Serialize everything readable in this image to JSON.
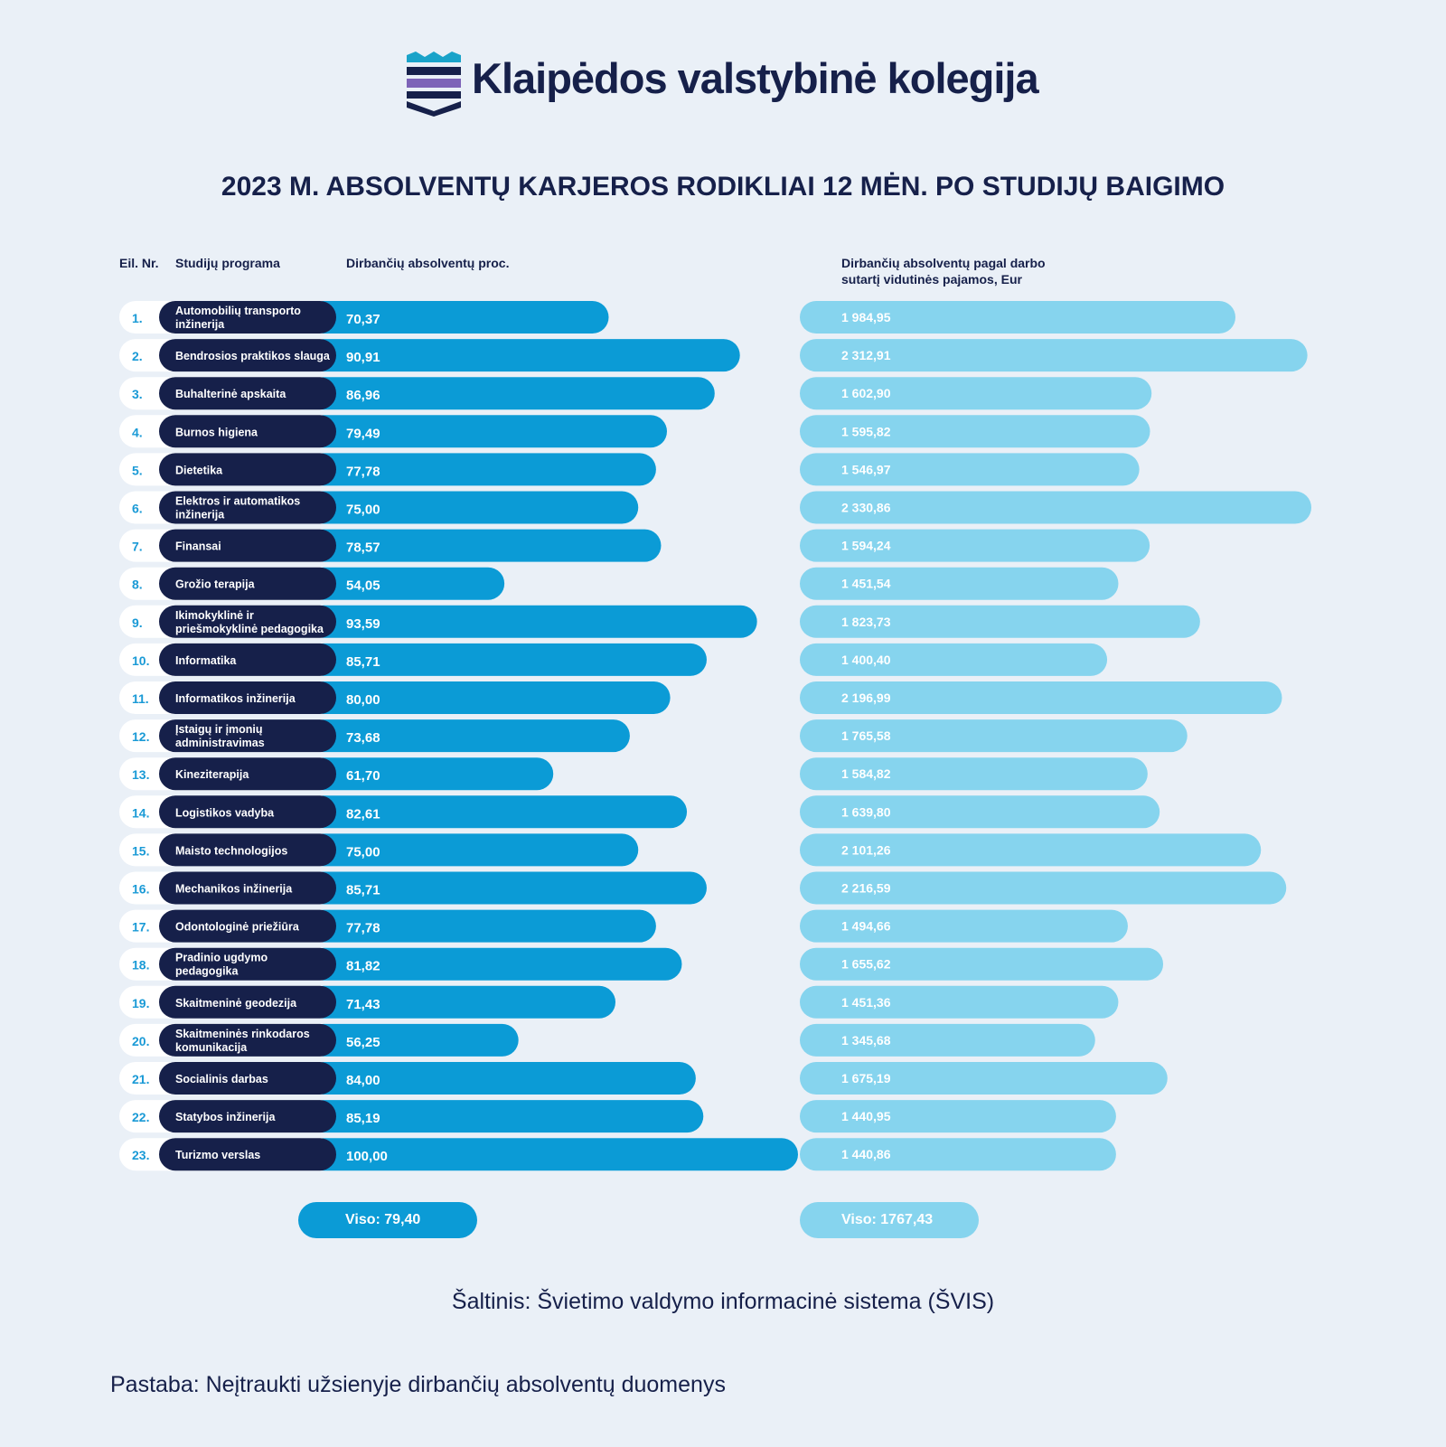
{
  "brand": {
    "name": "Klaipėdos valstybinė kolegija",
    "logo": "kvk-crest-icon"
  },
  "title": "2023 M. ABSOLVENTŲ KARJEROS RODIKLIAI 12 MĖN. PO STUDIJŲ BAIGIMO",
  "headers": {
    "nr": "Eil. Nr.",
    "program": "Studijų programa",
    "employed": "Dirbančių absolventų proc.",
    "income_line1": "Dirbančių absolventų pagal darbo",
    "income_line2": "sutartį vidutinės pajamos, Eur"
  },
  "totals": {
    "employed": "Viso: 79,40",
    "income": "Viso: 1767,43"
  },
  "source": "Šaltinis: Švietimo valdymo informacinė sistema (ŠVIS)",
  "note": "Pastaba: Neįtraukti užsienyje dirbančių absolventų duomenys",
  "colors": {
    "navy": "#16204a",
    "blue": "#0b9bd6",
    "light_blue": "#86d4ee",
    "background": "#eaf0f7",
    "number": "#1a9ad6"
  },
  "chart_data": {
    "type": "bar",
    "orientation": "horizontal",
    "rows": [
      {
        "nr": "1.",
        "lines": [
          "Automobilių transporto",
          "inžinerija"
        ],
        "employed": 70.37,
        "employed_label": "70,37",
        "income": 1984.95,
        "income_label": "1 984,95"
      },
      {
        "nr": "2.",
        "lines": [
          "Bendrosios praktikos slauga"
        ],
        "employed": 90.91,
        "employed_label": "90,91",
        "income": 2312.91,
        "income_label": "2 312,91"
      },
      {
        "nr": "3.",
        "lines": [
          "Buhalterinė apskaita"
        ],
        "employed": 86.96,
        "employed_label": "86,96",
        "income": 1602.9,
        "income_label": "1 602,90"
      },
      {
        "nr": "4.",
        "lines": [
          "Burnos higiena"
        ],
        "employed": 79.49,
        "employed_label": "79,49",
        "income": 1595.82,
        "income_label": "1 595,82"
      },
      {
        "nr": "5.",
        "lines": [
          "Dietetika"
        ],
        "employed": 77.78,
        "employed_label": "77,78",
        "income": 1546.97,
        "income_label": "1 546,97"
      },
      {
        "nr": "6.",
        "lines": [
          "Elektros ir automatikos",
          "inžinerija"
        ],
        "employed": 75.0,
        "employed_label": "75,00",
        "income": 2330.86,
        "income_label": "2 330,86"
      },
      {
        "nr": "7.",
        "lines": [
          "Finansai"
        ],
        "employed": 78.57,
        "employed_label": "78,57",
        "income": 1594.24,
        "income_label": "1 594,24"
      },
      {
        "nr": "8.",
        "lines": [
          "Grožio terapija"
        ],
        "employed": 54.05,
        "employed_label": "54,05",
        "income": 1451.54,
        "income_label": "1 451,54"
      },
      {
        "nr": "9.",
        "lines": [
          "Ikimokyklinė ir",
          "priešmokyklinė pedagogika"
        ],
        "employed": 93.59,
        "employed_label": "93,59",
        "income": 1823.73,
        "income_label": "1 823,73"
      },
      {
        "nr": "10.",
        "lines": [
          "Informatika"
        ],
        "employed": 85.71,
        "employed_label": "85,71",
        "income": 1400.4,
        "income_label": "1 400,40"
      },
      {
        "nr": "11.",
        "lines": [
          "Informatikos inžinerija"
        ],
        "employed": 80.0,
        "employed_label": "80,00",
        "income": 2196.99,
        "income_label": "2 196,99"
      },
      {
        "nr": "12.",
        "lines": [
          "Įstaigų ir įmonių",
          "administravimas"
        ],
        "employed": 73.68,
        "employed_label": "73,68",
        "income": 1765.58,
        "income_label": "1 765,58"
      },
      {
        "nr": "13.",
        "lines": [
          "Kineziterapija"
        ],
        "employed": 61.7,
        "employed_label": "61,70",
        "income": 1584.82,
        "income_label": "1 584,82"
      },
      {
        "nr": "14.",
        "lines": [
          "Logistikos vadyba"
        ],
        "employed": 82.61,
        "employed_label": "82,61",
        "income": 1639.8,
        "income_label": "1 639,80"
      },
      {
        "nr": "15.",
        "lines": [
          "Maisto technologijos"
        ],
        "employed": 75.0,
        "employed_label": "75,00",
        "income": 2101.26,
        "income_label": "2 101,26"
      },
      {
        "nr": "16.",
        "lines": [
          "Mechanikos inžinerija"
        ],
        "employed": 85.71,
        "employed_label": "85,71",
        "income": 2216.59,
        "income_label": "2 216,59"
      },
      {
        "nr": "17.",
        "lines": [
          "Odontologinė priežiūra"
        ],
        "employed": 77.78,
        "employed_label": "77,78",
        "income": 1494.66,
        "income_label": "1 494,66"
      },
      {
        "nr": "18.",
        "lines": [
          "Pradinio ugdymo",
          "pedagogika"
        ],
        "employed": 81.82,
        "employed_label": "81,82",
        "income": 1655.62,
        "income_label": "1 655,62"
      },
      {
        "nr": "19.",
        "lines": [
          "Skaitmeninė geodezija"
        ],
        "employed": 71.43,
        "employed_label": "71,43",
        "income": 1451.36,
        "income_label": "1 451,36"
      },
      {
        "nr": "20.",
        "lines": [
          "Skaitmeninės rinkodaros",
          "komunikacija"
        ],
        "employed": 56.25,
        "employed_label": "56,25",
        "income": 1345.68,
        "income_label": "1 345,68"
      },
      {
        "nr": "21.",
        "lines": [
          "Socialinis darbas"
        ],
        "employed": 84.0,
        "employed_label": "84,00",
        "income": 1675.19,
        "income_label": "1 675,19"
      },
      {
        "nr": "22.",
        "lines": [
          "Statybos inžinerija"
        ],
        "employed": 85.19,
        "employed_label": "85,19",
        "income": 1440.95,
        "income_label": "1 440,95"
      },
      {
        "nr": "23.",
        "lines": [
          "Turizmo verslas"
        ],
        "employed": 100.0,
        "employed_label": "100,00",
        "income": 1440.86,
        "income_label": "1 440,86"
      }
    ]
  }
}
